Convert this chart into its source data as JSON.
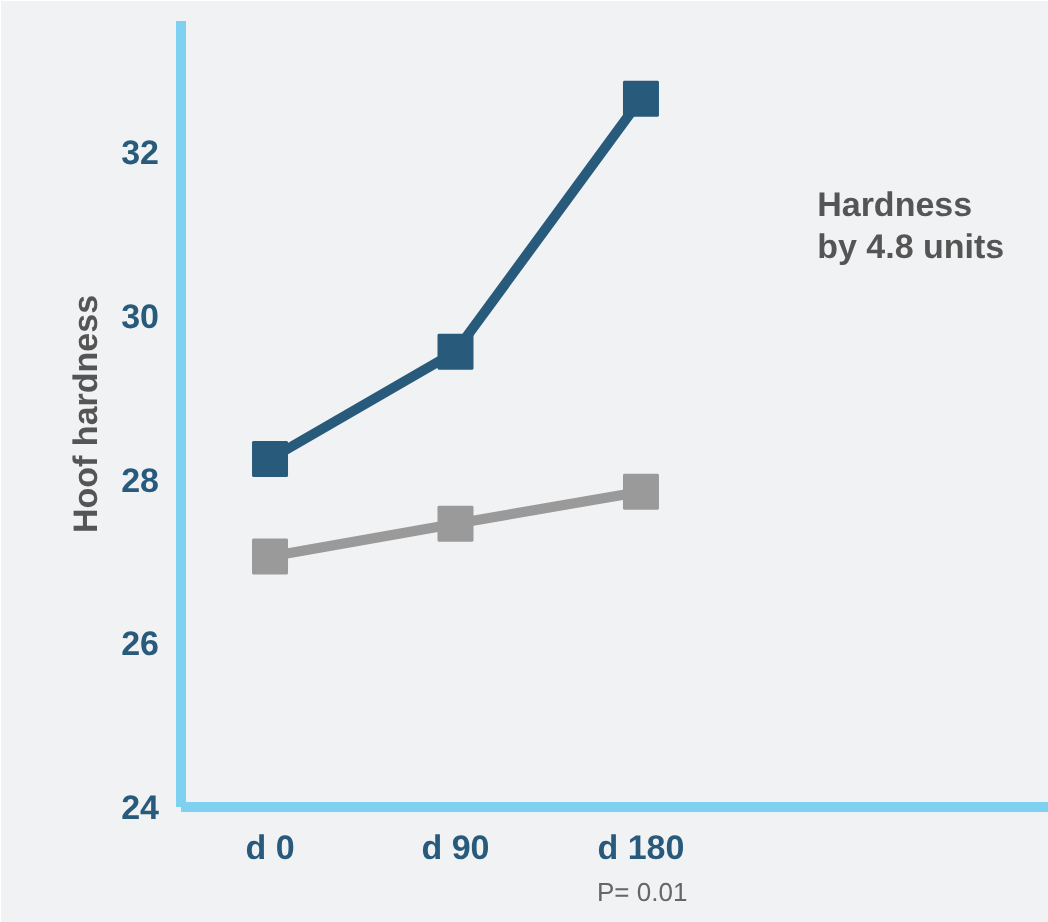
{
  "chart_data": {
    "type": "line",
    "ylabel": "Hoof hardness",
    "categories": [
      "d 0",
      "d 90",
      "d 180"
    ],
    "series": [
      {
        "color": "#285a7b",
        "values": [
          28.25,
          29.56,
          32.65
        ]
      },
      {
        "color": "#9a9a9a",
        "values": [
          27.06,
          27.46,
          27.85
        ]
      }
    ],
    "ylim": [
      24,
      33.6
    ],
    "yticks": [
      24,
      26,
      28,
      30,
      32
    ],
    "grid": false,
    "marker": "square",
    "line_style": "solid",
    "annotations": [
      "Hardness\nby 4.8 units",
      "P= 0.01"
    ]
  }
}
